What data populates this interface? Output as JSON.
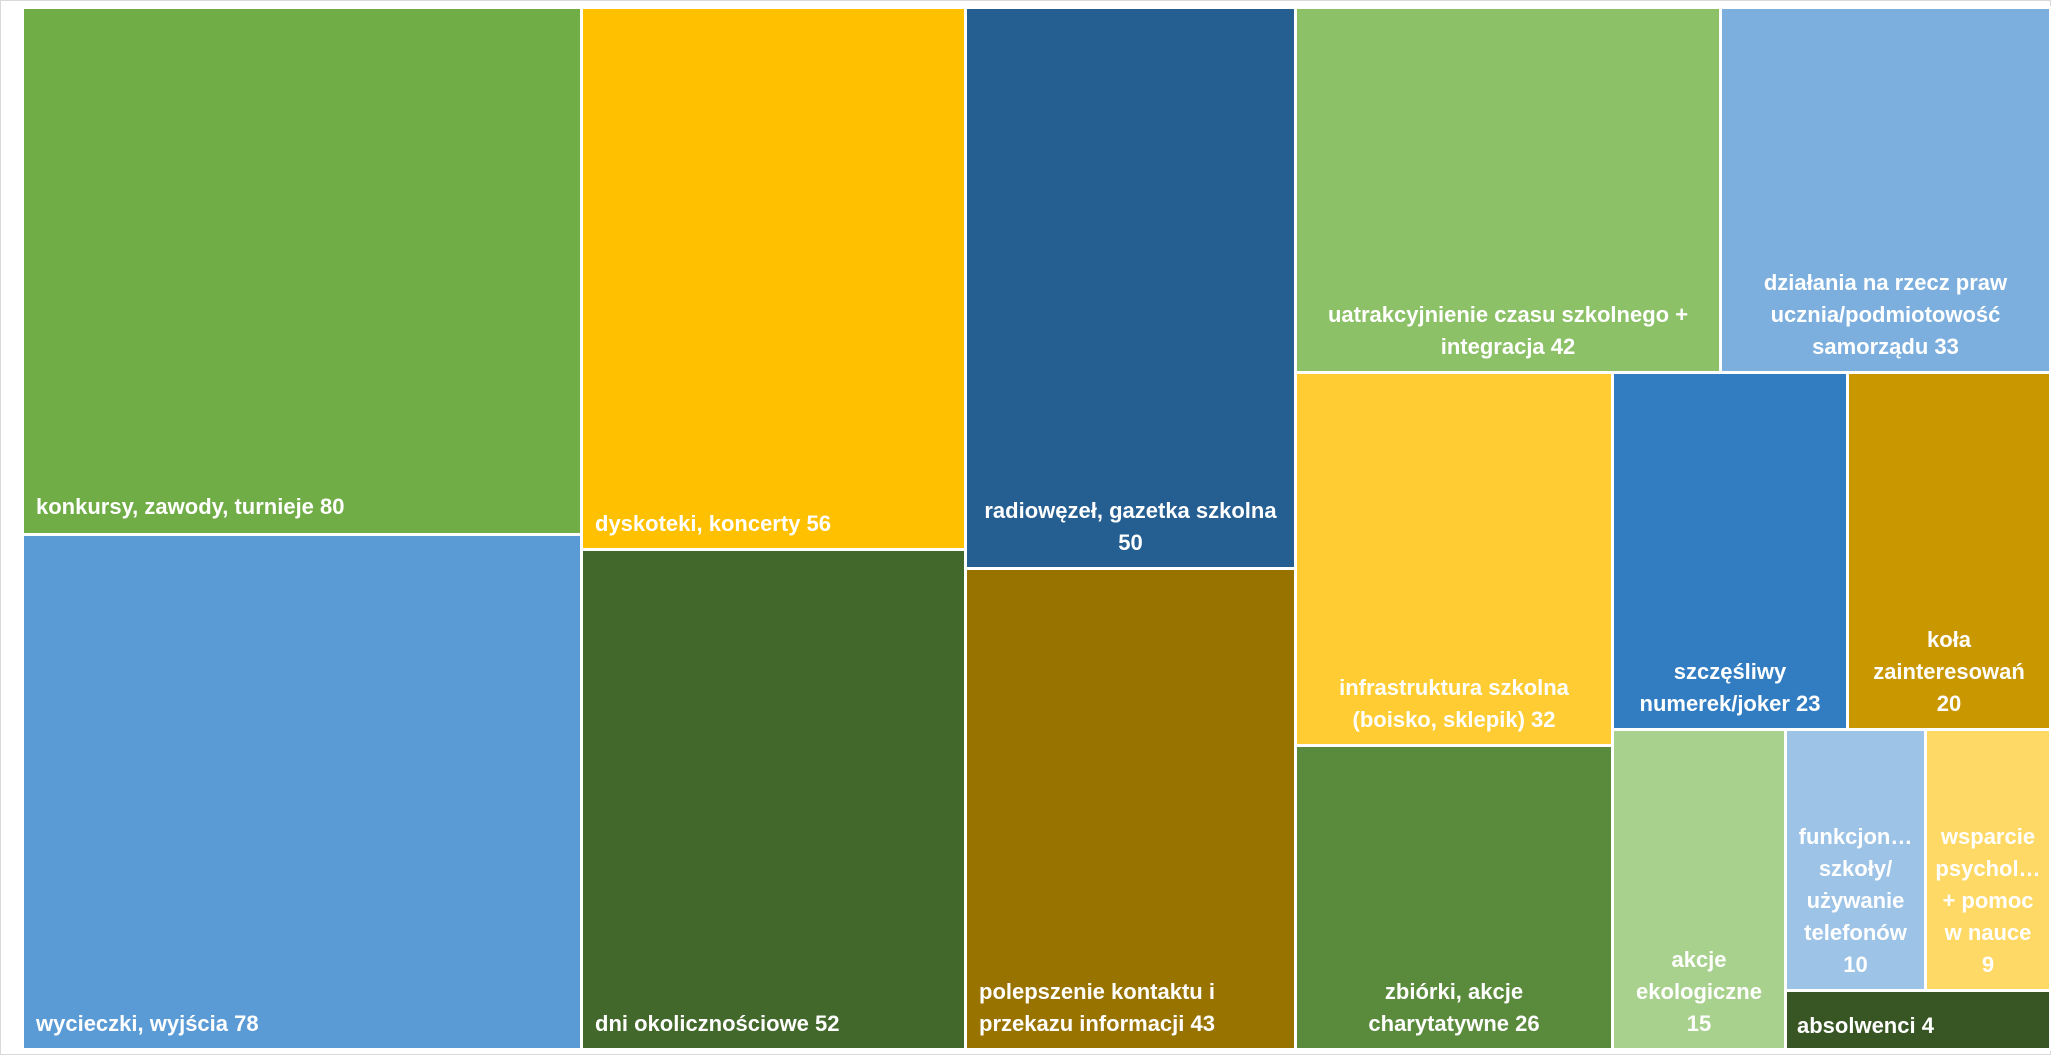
{
  "chart_data": {
    "type": "treemap",
    "items": [
      {
        "label": "konkursy, zawody, turnieje 80",
        "value": 80,
        "color": "#70AD47"
      },
      {
        "label": "wycieczki, wyjścia 78",
        "value": 78,
        "color": "#5B9BD5"
      },
      {
        "label": "dyskoteki, koncerty 56",
        "value": 56,
        "color": "#FFC000"
      },
      {
        "label": "dni okolicznościowe 52",
        "value": 52,
        "color": "#43682B"
      },
      {
        "label": "radiowęzeł, gazetka szkolna\n50",
        "value": 50,
        "color": "#255E91"
      },
      {
        "label": "polepszenie kontaktu i\nprzekazu informacji 43",
        "value": 43,
        "color": "#997300"
      },
      {
        "label": "uatrakcyjnienie czasu szkolnego +\nintegracja 42",
        "value": 42,
        "color": "#8CC168"
      },
      {
        "label": "działania na rzecz praw\nucznia/podmiotowość\nsamorządu 33",
        "value": 33,
        "color": "#7CAFDD"
      },
      {
        "label": "infrastruktura szkolna\n(boisko, sklepik) 32",
        "value": 32,
        "color": "#FFCD33"
      },
      {
        "label": "zbiórki, akcje\ncharytatywne 26",
        "value": 26,
        "color": "#5A8A3B"
      },
      {
        "label": "szczęśliwy\nnumerek/joker 23",
        "value": 23,
        "color": "#327DC2"
      },
      {
        "label": "koła\nzainteresowań\n20",
        "value": 20,
        "color": "#C99700"
      },
      {
        "label": "akcje\nekologiczne\n15",
        "value": 15,
        "color": "#A9D18E"
      },
      {
        "label": "funkcjon…\nszkoły/\nużywanie\ntelefonów\n10",
        "value": 10,
        "color": "#9DC3E6"
      },
      {
        "label": "wsparcie\npsychol…\n+ pomoc\nw nauce\n9",
        "value": 9,
        "color": "#FFD966"
      },
      {
        "label": "absolwenci 4",
        "value": 4,
        "color": "#375623"
      }
    ]
  }
}
